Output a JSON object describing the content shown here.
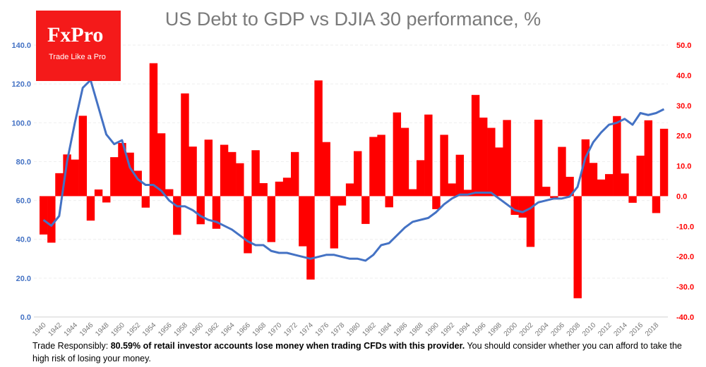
{
  "logo": {
    "brand": "FxPro",
    "tagline": "Trade Like a Pro"
  },
  "disclaimer": {
    "prefix": "Trade Responsibly: ",
    "bold": "80.59% of retail investor accounts lose money when trading CFDs with this provider.",
    "suffix": " You should consider whether you can afford to take the high risk of losing your money."
  },
  "colors": {
    "bars": "#ff0000",
    "line": "#4472c4",
    "left_axis": "#4472c4",
    "right_axis": "#ff0000"
  },
  "chart_data": {
    "type": "bar+line",
    "title": "US Debt to GDP vs DJIA 30 performance, %",
    "x": [
      1940,
      1941,
      1942,
      1943,
      1944,
      1945,
      1946,
      1947,
      1948,
      1949,
      1950,
      1951,
      1952,
      1953,
      1954,
      1955,
      1956,
      1957,
      1958,
      1959,
      1960,
      1961,
      1962,
      1963,
      1964,
      1965,
      1966,
      1967,
      1968,
      1969,
      1970,
      1971,
      1972,
      1973,
      1974,
      1975,
      1976,
      1977,
      1978,
      1979,
      1980,
      1981,
      1982,
      1983,
      1984,
      1985,
      1986,
      1987,
      1988,
      1989,
      1990,
      1991,
      1992,
      1993,
      1994,
      1995,
      1996,
      1997,
      1998,
      1999,
      2000,
      2001,
      2002,
      2003,
      2004,
      2005,
      2006,
      2007,
      2008,
      2009,
      2010,
      2011,
      2012,
      2013,
      2014,
      2015,
      2016,
      2017,
      2018,
      2019
    ],
    "x_tick_labels": [
      "1940",
      "1942",
      "1944",
      "1946",
      "1948",
      "1950",
      "1952",
      "1954",
      "1956",
      "1958",
      "1960",
      "1962",
      "1964",
      "1966",
      "1968",
      "1970",
      "1972",
      "1974",
      "1976",
      "1978",
      "1980",
      "1982",
      "1984",
      "1986",
      "1988",
      "1990",
      "1992",
      "1994",
      "1996",
      "1998",
      "2000",
      "2002",
      "2004",
      "2006",
      "2008",
      "2010",
      "2012",
      "2014",
      "2016",
      "2018"
    ],
    "series": [
      {
        "type": "bar",
        "axis": "right",
        "values": [
          -12.7,
          -15.4,
          7.6,
          13.8,
          12.1,
          26.6,
          -8.1,
          2.2,
          -2.1,
          12.9,
          17.6,
          14.4,
          8.4,
          -3.8,
          44.0,
          20.8,
          2.3,
          -12.8,
          34.0,
          16.4,
          -9.3,
          18.7,
          -10.8,
          17.0,
          14.6,
          10.9,
          -18.9,
          15.2,
          4.3,
          -15.2,
          4.8,
          6.1,
          14.6,
          -16.6,
          -27.6,
          38.3,
          17.9,
          -17.3,
          -3.1,
          4.2,
          14.9,
          -9.2,
          19.6,
          20.3,
          -3.7,
          27.7,
          22.6,
          2.3,
          11.9,
          27.0,
          -4.3,
          20.3,
          4.2,
          13.7,
          2.1,
          33.5,
          26.0,
          22.6,
          16.1,
          25.2,
          -6.2,
          -7.1,
          -16.8,
          25.3,
          3.1,
          -0.6,
          16.3,
          6.4,
          -33.8,
          18.8,
          11.0,
          5.5,
          7.3,
          26.5,
          7.5,
          -2.2,
          13.4,
          25.1,
          -5.6,
          22.3
        ]
      },
      {
        "type": "line",
        "axis": "left",
        "values": [
          50,
          47,
          52,
          80,
          100,
          118,
          122,
          108,
          94,
          89,
          91,
          77,
          71,
          68,
          68,
          65,
          60,
          57,
          57,
          55,
          52,
          50,
          49,
          47,
          45,
          42,
          39,
          37,
          37,
          34,
          33,
          33,
          32,
          31,
          30,
          31,
          32,
          32,
          31,
          30,
          30,
          29,
          32,
          37,
          38,
          42,
          46,
          49,
          50,
          51,
          54,
          58,
          61,
          63,
          63,
          64,
          64,
          64,
          61,
          58,
          55,
          54,
          56,
          59,
          60,
          61,
          61,
          62,
          67,
          82,
          90,
          95,
          99,
          100,
          102,
          99,
          105,
          104,
          105,
          107
        ]
      }
    ],
    "left_axis": {
      "range": [
        0,
        140
      ],
      "ticks": [
        "0.0",
        "20.0",
        "40.0",
        "60.0",
        "80.0",
        "100.0",
        "120.0",
        "140.0"
      ]
    },
    "right_axis": {
      "range": [
        -40,
        50
      ],
      "ticks": [
        "-40.0",
        "-30.0",
        "-20.0",
        "-10.0",
        "0.0",
        "10.0",
        "20.0",
        "30.0",
        "40.0",
        "50.0"
      ]
    },
    "grid": true
  }
}
